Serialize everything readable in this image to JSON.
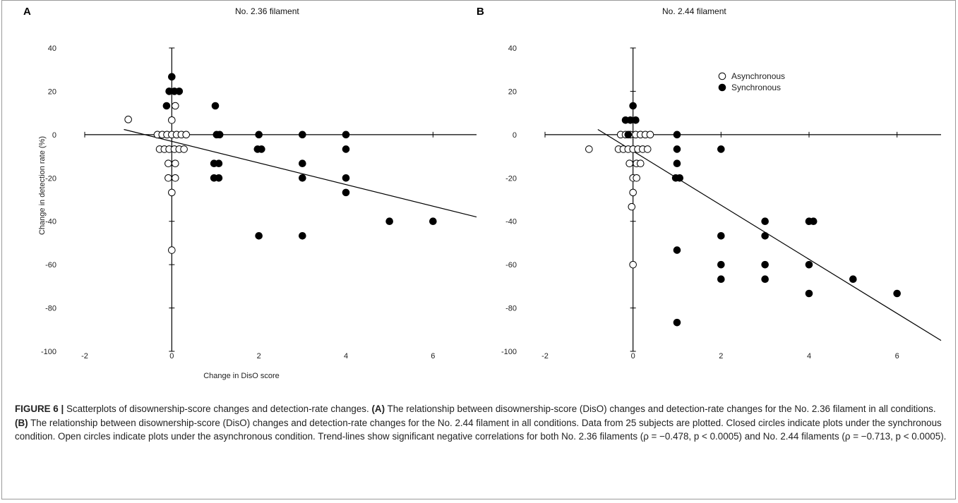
{
  "figure": {
    "caption": {
      "label": "FIGURE 6 |",
      "text1": " Scatterplots of disownership-score changes and detection-rate changes. ",
      "refA": "(A)",
      "text2": " The relationship between disownership-score (DisO) changes and detection-rate changes for the No. 2.36 filament in all conditions. ",
      "refB": "(B)",
      "text3": " The relationship between disownership-score (DisO) changes and detection-rate changes for the No. 2.44 filament in all conditions. Data from 25 subjects are plotted. Closed circles indicate plots under the synchronous condition. Open circles indicate plots under the asynchronous condition. Trend-lines show significant negative correlations for both No. 2.36 filaments (ρ = −0.478, p < 0.0005) and No. 2.44 filaments (ρ = −0.713, p < 0.0005)."
    }
  },
  "chart_data": [
    {
      "type": "scatter",
      "panel": "A",
      "title": "No. 2.36 filament",
      "xlabel": "Change in DisO score",
      "ylabel": "Change in detection rate (%)",
      "xlim": [
        -2,
        7
      ],
      "ylim": [
        -100,
        40
      ],
      "xticks": [
        -2,
        0,
        2,
        4,
        6
      ],
      "yticks": [
        40,
        20,
        0,
        -20,
        -40,
        -60,
        -80,
        -100
      ],
      "series": [
        {
          "marker": "open",
          "points": [
            [
              -1,
              7
            ],
            [
              -0.33,
              0
            ],
            [
              -0.22,
              0
            ],
            [
              -0.11,
              0
            ],
            [
              0,
              0
            ],
            [
              0.11,
              0
            ],
            [
              0.22,
              0
            ],
            [
              0.33,
              0
            ],
            [
              -0.28,
              -6.7
            ],
            [
              -0.17,
              -6.7
            ],
            [
              -0.06,
              -6.7
            ],
            [
              0.06,
              -6.7
            ],
            [
              0.17,
              -6.7
            ],
            [
              0.28,
              -6.7
            ],
            [
              0,
              6.7
            ],
            [
              0.08,
              13.3
            ],
            [
              -0.08,
              -13.3
            ],
            [
              0.08,
              -13.3
            ],
            [
              -0.08,
              -20
            ],
            [
              0.08,
              -20
            ],
            [
              0,
              -26.7
            ],
            [
              0,
              -53.3
            ]
          ]
        },
        {
          "marker": "filled",
          "points": [
            [
              0,
              26.7
            ],
            [
              -0.06,
              20
            ],
            [
              0.06,
              20
            ],
            [
              0.17,
              20
            ],
            [
              -0.12,
              13.3
            ],
            [
              1,
              13.3
            ],
            [
              1.03,
              0
            ],
            [
              1.1,
              0
            ],
            [
              0.97,
              -13.3
            ],
            [
              1.08,
              -13.3
            ],
            [
              0.97,
              -20
            ],
            [
              1.08,
              -20
            ],
            [
              2,
              0
            ],
            [
              1.97,
              -6.7
            ],
            [
              2.06,
              -6.7
            ],
            [
              2,
              -46.7
            ],
            [
              3,
              0
            ],
            [
              3,
              -13.3
            ],
            [
              3,
              -20
            ],
            [
              3,
              -46.7
            ],
            [
              4,
              0
            ],
            [
              4,
              -6.7
            ],
            [
              4,
              -20
            ],
            [
              4,
              -26.7
            ],
            [
              5,
              -40
            ],
            [
              6,
              -40
            ]
          ]
        }
      ],
      "trend": [
        [
          -1.1,
          2.4
        ],
        [
          7,
          -38
        ]
      ]
    },
    {
      "type": "scatter",
      "panel": "B",
      "title": "No. 2.44 filament",
      "xlabel": "",
      "ylabel": "",
      "xlim": [
        -2,
        7
      ],
      "ylim": [
        -100,
        40
      ],
      "xticks": [
        -2,
        0,
        2,
        4,
        6
      ],
      "yticks": [
        40,
        20,
        0,
        -20,
        -40,
        -60,
        -80,
        -100
      ],
      "legend": {
        "position": "top-right",
        "entries": [
          {
            "marker": "open",
            "label": "Asynchronous"
          },
          {
            "marker": "filled",
            "label": "Synchronous"
          }
        ]
      },
      "series": [
        {
          "marker": "open",
          "points": [
            [
              -1,
              -6.7
            ],
            [
              -0.28,
              0
            ],
            [
              -0.17,
              0
            ],
            [
              -0.06,
              0
            ],
            [
              0.06,
              0
            ],
            [
              0.17,
              0
            ],
            [
              0.28,
              0
            ],
            [
              0.39,
              0
            ],
            [
              -0.33,
              -6.7
            ],
            [
              -0.22,
              -6.7
            ],
            [
              -0.11,
              -6.7
            ],
            [
              0,
              -6.7
            ],
            [
              0.11,
              -6.7
            ],
            [
              0.22,
              -6.7
            ],
            [
              0.33,
              -6.7
            ],
            [
              -0.08,
              -13.3
            ],
            [
              0.08,
              -13.3
            ],
            [
              0.17,
              -13.3
            ],
            [
              0,
              -20
            ],
            [
              0.08,
              -20
            ],
            [
              0,
              -26.7
            ],
            [
              -0.03,
              -33.3
            ],
            [
              0,
              -60
            ]
          ]
        },
        {
          "marker": "filled",
          "points": [
            [
              -0.17,
              6.7
            ],
            [
              -0.06,
              6.7
            ],
            [
              0.06,
              6.7
            ],
            [
              0,
              13.3
            ],
            [
              -0.11,
              0
            ],
            [
              1,
              0
            ],
            [
              1,
              -6.7
            ],
            [
              1,
              -13.3
            ],
            [
              0.97,
              -20
            ],
            [
              1.06,
              -20
            ],
            [
              2,
              -6.7
            ],
            [
              1,
              -53.3
            ],
            [
              1,
              -86.7
            ],
            [
              2,
              -46.7
            ],
            [
              2,
              -60
            ],
            [
              2,
              -66.7
            ],
            [
              3,
              -40
            ],
            [
              3,
              -46.7
            ],
            [
              3,
              -60
            ],
            [
              3,
              -66.7
            ],
            [
              4,
              -40
            ],
            [
              4.1,
              -40
            ],
            [
              4,
              -60
            ],
            [
              4,
              -73.3
            ],
            [
              5,
              -66.7
            ],
            [
              6,
              -73.3
            ]
          ]
        }
      ],
      "trend": [
        [
          -0.8,
          2.4
        ],
        [
          7,
          -95
        ]
      ]
    }
  ],
  "colors": {
    "marker": "#000000",
    "axis": "#000000",
    "border": "#9a9a9a"
  }
}
